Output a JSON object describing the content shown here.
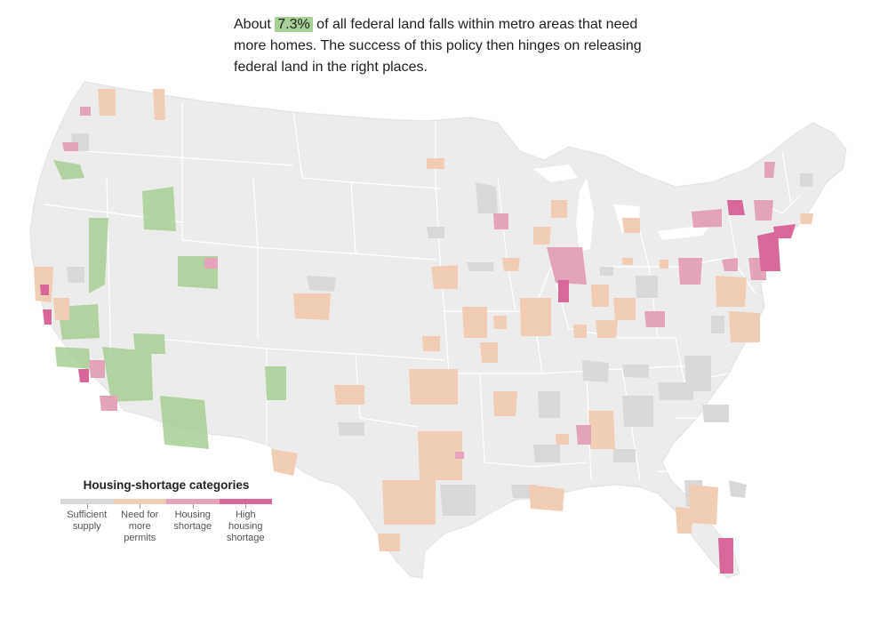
{
  "intro": {
    "before": "About ",
    "highlight": "7.3%",
    "after": " of all federal land falls within metro areas that need more homes. The success of this policy then hinges on releasing federal land in the right places."
  },
  "legend": {
    "title": "Housing-shortage categories",
    "categories": [
      {
        "label_line1": "Sufficient",
        "label_line2": "supply",
        "color": "#d9d9d9"
      },
      {
        "label_line1": "Need for",
        "label_line2": "more permits",
        "color": "#f2cdb6"
      },
      {
        "label_line1": "Housing",
        "label_line2": "shortage",
        "color": "#e3a3b8"
      },
      {
        "label_line1": "High housing",
        "label_line2": "shortage",
        "color": "#d8679a"
      }
    ]
  },
  "colors": {
    "land": "#ececec",
    "state_border": "#ffffff",
    "federal_land": "#a8cf95",
    "sufficient": "#d9d9d9",
    "permits": "#f2cdb6",
    "shortage": "#e3a3b8",
    "high": "#d8679a"
  }
}
